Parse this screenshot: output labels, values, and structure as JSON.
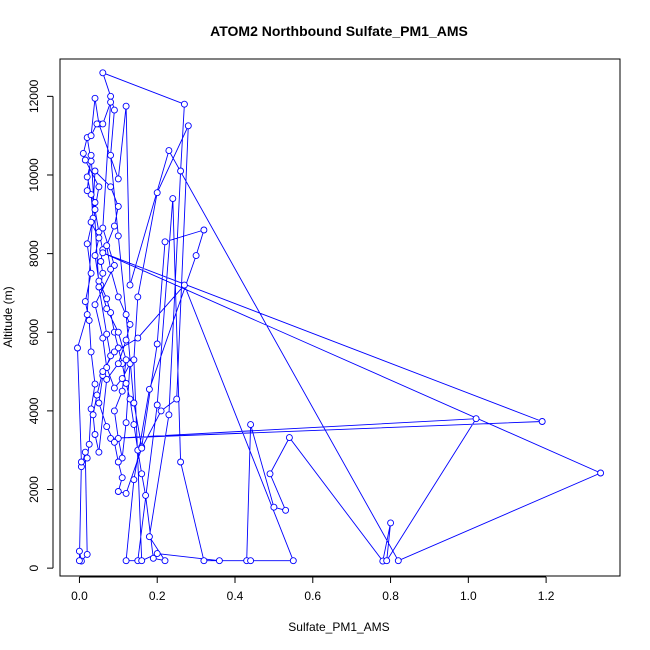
{
  "chart_data": {
    "type": "line",
    "title": "ATOM2 Northbound Sulfate_PM1_AMS",
    "xlabel": "Sulfate_PM1_AMS",
    "ylabel": "Altitude (m)",
    "xlim": [
      -0.05,
      1.39
    ],
    "ylim": [
      -200,
      12950
    ],
    "xticks": [
      "0.0",
      "0.2",
      "0.4",
      "0.6",
      "0.8",
      "1.0",
      "1.2"
    ],
    "yticks": [
      "0",
      "2000",
      "4000",
      "6000",
      "8000",
      "10000",
      "12000"
    ],
    "grid": false,
    "series_color": "#0000ff",
    "series": [
      {
        "marker": "open-circle",
        "points": [
          [
            0.0,
            430
          ],
          [
            0.005,
            180
          ],
          [
            0.02,
            350
          ],
          [
            0.015,
            2950
          ],
          [
            0.005,
            2580
          ],
          [
            0.02,
            2800
          ],
          [
            0.025,
            3150
          ],
          [
            0.03,
            4050
          ],
          [
            0.04,
            4680
          ],
          [
            0.03,
            5500
          ],
          [
            0.025,
            6300
          ],
          [
            0.015,
            6780
          ],
          [
            0.03,
            7500
          ],
          [
            0.02,
            8250
          ],
          [
            0.035,
            8900
          ],
          [
            0.03,
            9500
          ],
          [
            0.02,
            9950
          ],
          [
            0.03,
            10350
          ],
          [
            0.02,
            10950
          ],
          [
            0.01,
            10550
          ],
          [
            0.015,
            10380
          ],
          [
            0.05,
            9700
          ],
          [
            0.04,
            9120
          ],
          [
            0.05,
            8550
          ],
          [
            0.06,
            8100
          ],
          [
            0.055,
            7800
          ],
          [
            0.06,
            7500
          ],
          [
            0.055,
            7200
          ],
          [
            0.07,
            6850
          ],
          [
            0.08,
            6500
          ],
          [
            0.09,
            6000
          ],
          [
            0.1,
            5600
          ],
          [
            0.11,
            5200
          ],
          [
            0.12,
            4700
          ],
          [
            0.13,
            4300
          ],
          [
            0.14,
            3650
          ],
          [
            0.15,
            3000
          ],
          [
            0.16,
            2400
          ],
          [
            0.17,
            1850
          ],
          [
            0.19,
            250
          ],
          [
            0.22,
            190
          ],
          [
            0.18,
            800
          ],
          [
            0.23,
            3900
          ],
          [
            0.26,
            10100
          ],
          [
            0.27,
            11800
          ],
          [
            0.06,
            12600
          ],
          [
            0.08,
            12000
          ],
          [
            0.09,
            11650
          ],
          [
            0.08,
            10500
          ],
          [
            0.1,
            8450
          ],
          [
            0.12,
            6450
          ],
          [
            0.14,
            4200
          ],
          [
            0.16,
            3080
          ],
          [
            0.2,
            5700
          ],
          [
            0.22,
            8300
          ],
          [
            0.32,
            8600
          ],
          [
            0.3,
            7950
          ],
          [
            0.18,
            4550
          ],
          [
            0.14,
            2250
          ],
          [
            0.12,
            190
          ],
          [
            0.15,
            190
          ],
          [
            0.2,
            4150
          ],
          [
            0.24,
            9400
          ],
          [
            0.26,
            2700
          ],
          [
            0.32,
            190
          ],
          [
            0.43,
            190
          ],
          [
            0.44,
            3650
          ],
          [
            0.5,
            1550
          ],
          [
            0.53,
            1470
          ],
          [
            0.49,
            2400
          ],
          [
            0.54,
            3320
          ],
          [
            0.78,
            180
          ],
          [
            0.8,
            1150
          ],
          [
            0.79,
            190
          ],
          [
            1.02,
            3800
          ],
          [
            0.08,
            3300
          ],
          [
            1.19,
            3730
          ],
          [
            0.06,
            8020
          ],
          [
            1.34,
            2420
          ],
          [
            0.82,
            190
          ],
          [
            0.23,
            10620
          ],
          [
            0.13,
            7200
          ],
          [
            0.12,
            11750
          ],
          [
            0.1,
            9900
          ],
          [
            0.05,
            11300
          ],
          [
            0.04,
            11950
          ],
          [
            0.03,
            11000
          ],
          [
            0.045,
            11300
          ],
          [
            0.06,
            11300
          ],
          [
            0.08,
            11850
          ],
          [
            0.06,
            8650
          ],
          [
            0.09,
            7700
          ],
          [
            0.04,
            6700
          ],
          [
            0.06,
            5850
          ],
          [
            0.07,
            5100
          ],
          [
            0.09,
            4580
          ],
          [
            0.11,
            4820
          ],
          [
            0.13,
            5200
          ],
          [
            0.12,
            3700
          ],
          [
            0.11,
            2800
          ],
          [
            0.1,
            3300
          ],
          [
            0.09,
            4000
          ],
          [
            0.11,
            4500
          ],
          [
            0.12,
            5300
          ],
          [
            0.1,
            6000
          ],
          [
            0.07,
            6600
          ],
          [
            0.05,
            7300
          ],
          [
            0.04,
            7950
          ],
          [
            0.05,
            8400
          ],
          [
            0.03,
            8800
          ],
          [
            0.04,
            9300
          ],
          [
            0.02,
            9600
          ],
          [
            0.03,
            10500
          ],
          [
            0.05,
            7150
          ],
          [
            0.07,
            5950
          ],
          [
            0.08,
            5400
          ],
          [
            0.06,
            4900
          ],
          [
            0.05,
            4200
          ],
          [
            0.07,
            3600
          ],
          [
            0.09,
            3200
          ],
          [
            0.1,
            2700
          ],
          [
            0.11,
            2300
          ],
          [
            0.1,
            1950
          ],
          [
            0.12,
            1900
          ],
          [
            0.16,
            3050
          ],
          [
            0.21,
            4000
          ],
          [
            0.25,
            4300
          ],
          [
            0.28,
            11250
          ],
          [
            0.2,
            9550
          ],
          [
            0.15,
            6900
          ],
          [
            0.14,
            5300
          ],
          [
            0.16,
            190
          ],
          [
            0.2,
            370
          ],
          [
            0.36,
            190
          ],
          [
            0.44,
            190
          ],
          [
            0.55,
            190
          ],
          [
            0.27,
            7200
          ],
          [
            0.15,
            5850
          ],
          [
            0.09,
            5500
          ],
          [
            0.06,
            5000
          ],
          [
            0.045,
            4400
          ],
          [
            0.035,
            3900
          ],
          [
            0.04,
            3400
          ],
          [
            0.05,
            2950
          ],
          [
            0.07,
            4800
          ],
          [
            0.1,
            5200
          ],
          [
            0.12,
            5800
          ],
          [
            0.13,
            6200
          ],
          [
            0.1,
            6900
          ],
          [
            0.08,
            7600
          ],
          [
            0.07,
            8200
          ],
          [
            0.09,
            8700
          ],
          [
            0.1,
            9200
          ],
          [
            0.08,
            9700
          ],
          [
            0.04,
            10100
          ],
          [
            0.02,
            6450
          ],
          [
            -0.005,
            5600
          ],
          [
            0.005,
            2700
          ],
          [
            0.0,
            190
          ]
        ]
      }
    ]
  }
}
